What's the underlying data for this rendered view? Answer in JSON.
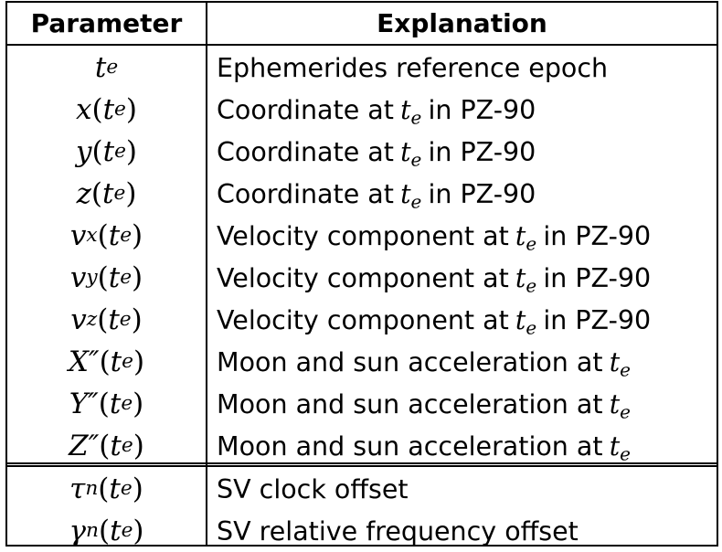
{
  "table": {
    "headers": {
      "parameter": "Parameter",
      "explanation": "Explanation"
    },
    "rows": [
      {
        "param": {
          "base": "t",
          "sub": "e",
          "arg": ""
        },
        "text": "Ephemerides reference epoch"
      },
      {
        "param": {
          "base": "x",
          "sub": "",
          "arg": "e"
        },
        "text": "Coordinate at",
        "sym": {
          "base": "t",
          "sub": "e"
        },
        "after": "in PZ-90"
      },
      {
        "param": {
          "base": "y",
          "sub": "",
          "arg": "e"
        },
        "text": "Coordinate at",
        "sym": {
          "base": "t",
          "sub": "e"
        },
        "after": "in PZ-90"
      },
      {
        "param": {
          "base": "z",
          "sub": "",
          "arg": "e"
        },
        "text": "Coordinate at",
        "sym": {
          "base": "t",
          "sub": "e"
        },
        "after": "in PZ-90"
      },
      {
        "param": {
          "base": "v",
          "sub": "x",
          "arg": "e"
        },
        "text": "Velocity component at",
        "sym": {
          "base": "t",
          "sub": "e"
        },
        "after": "in PZ-90"
      },
      {
        "param": {
          "base": "v",
          "sub": "y",
          "arg": "e"
        },
        "text": "Velocity component at",
        "sym": {
          "base": "t",
          "sub": "e"
        },
        "after": "in PZ-90"
      },
      {
        "param": {
          "base": "v",
          "sub": "z",
          "arg": "e"
        },
        "text": "Velocity component at",
        "sym": {
          "base": "t",
          "sub": "e"
        },
        "after": "in PZ-90"
      },
      {
        "param": {
          "base": "X″",
          "sub": "",
          "arg": "e"
        },
        "text": "Moon and sun acceleration at",
        "sym": {
          "base": "t",
          "sub": "e"
        },
        "after": ""
      },
      {
        "param": {
          "base": "Y″",
          "sub": "",
          "arg": "e"
        },
        "text": "Moon and sun acceleration at",
        "sym": {
          "base": "t",
          "sub": "e"
        },
        "after": ""
      },
      {
        "param": {
          "base": "Z″",
          "sub": "",
          "arg": "e"
        },
        "text": "Moon and sun acceleration at",
        "sym": {
          "base": "t",
          "sub": "e"
        },
        "after": ""
      },
      {
        "param": {
          "base": "τ",
          "sub": "n",
          "arg": "e"
        },
        "text": "SV clock offset"
      },
      {
        "param": {
          "base": "γ",
          "sub": "n",
          "arg": "e"
        },
        "text": "SV relative frequency offset"
      }
    ]
  }
}
